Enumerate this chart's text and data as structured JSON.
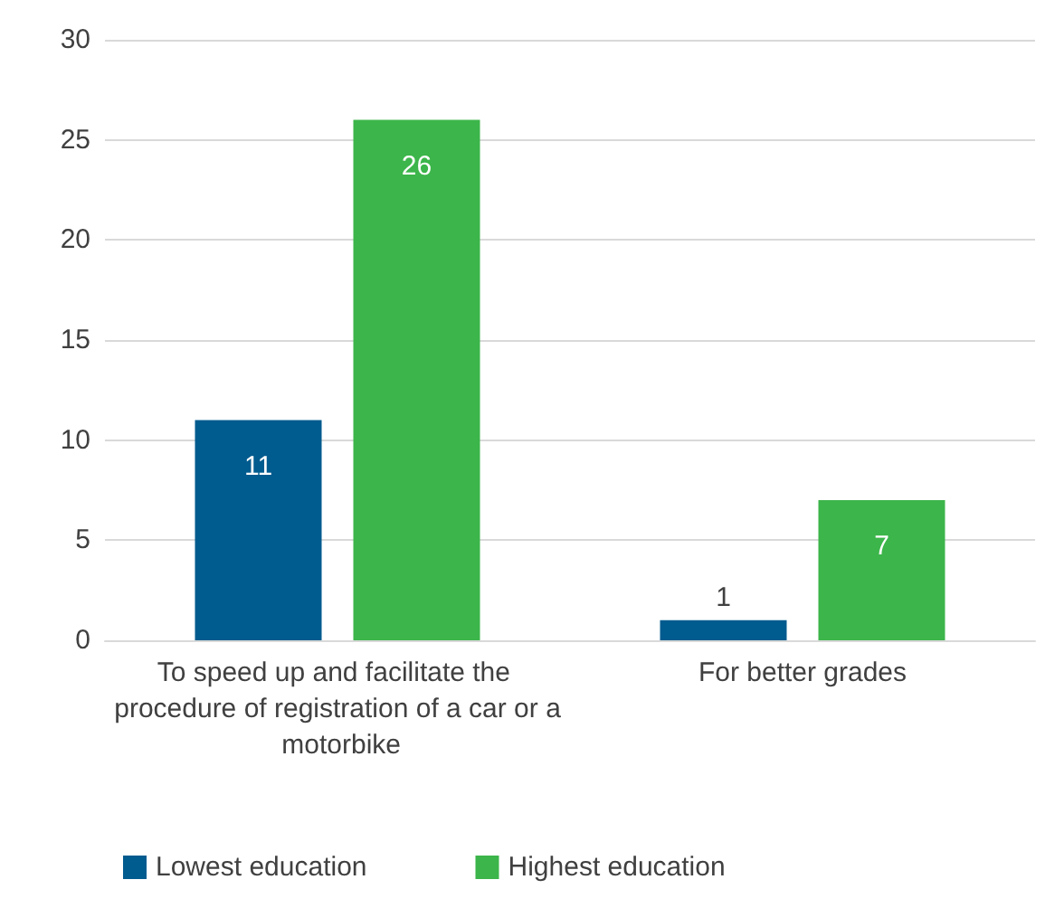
{
  "chart_data": {
    "type": "bar",
    "categories": [
      "To speed up and facilitate the procedure of registration of a car or a motorbike",
      "For better grades"
    ],
    "series": [
      {
        "name": "Lowest education",
        "color": "#005b8e",
        "values": [
          11,
          1
        ]
      },
      {
        "name": "Highest education",
        "color": "#3cb54a",
        "values": [
          26,
          7
        ]
      }
    ],
    "ylim": [
      0,
      30
    ],
    "yticks": [
      0,
      5,
      10,
      15,
      20,
      25,
      30
    ],
    "grid": "y",
    "legend": "bottom left",
    "data_labels": true
  }
}
